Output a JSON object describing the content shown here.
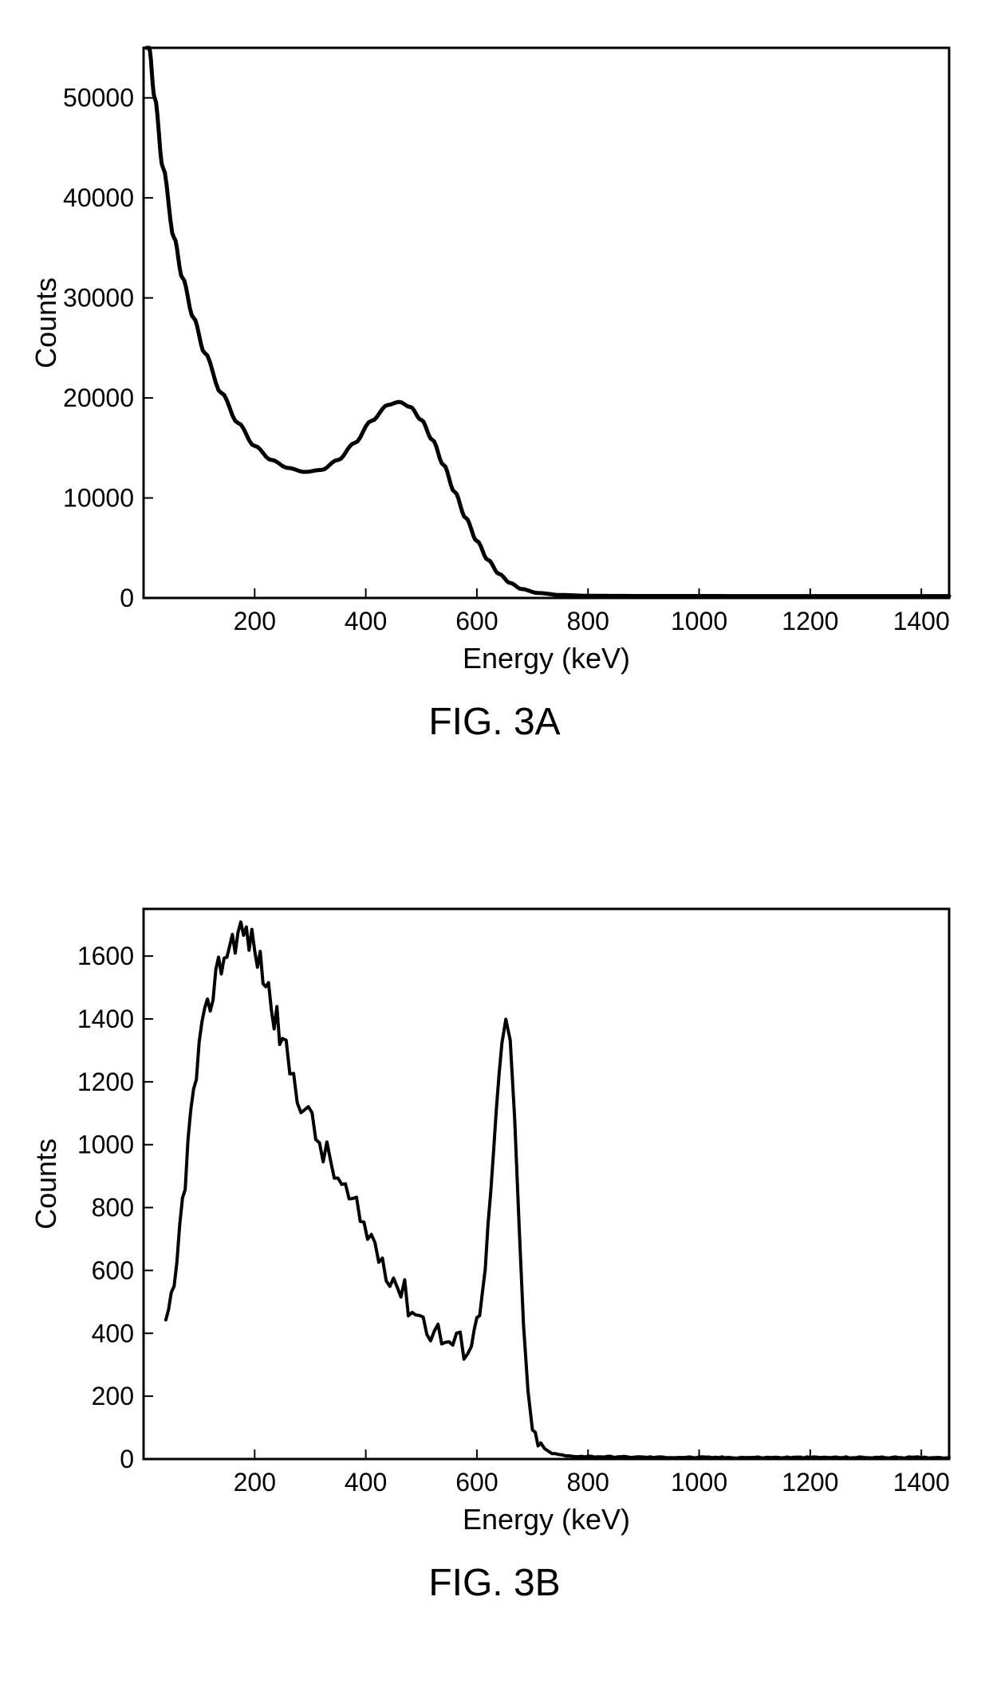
{
  "chartA": {
    "type": "line",
    "caption": "FIG. 3A",
    "xlabel": "Energy (keV)",
    "ylabel": "Counts",
    "xlim": [
      0,
      1450
    ],
    "ylim": [
      0,
      55000
    ],
    "xticks": [
      200,
      400,
      600,
      800,
      1000,
      1200,
      1400
    ],
    "yticks": [
      0,
      10000,
      20000,
      30000,
      40000,
      50000
    ],
    "line_color": "#000000",
    "line_width": 5,
    "background_color": "#ffffff",
    "grid": false,
    "axis_color": "#000000",
    "axis_width": 3,
    "tick_len": 12,
    "label_fontsize": 36,
    "tick_fontsize": 32,
    "caption_fontsize": 48,
    "series": [
      {
        "x": 5,
        "y": 58000
      },
      {
        "x": 10,
        "y": 55000
      },
      {
        "x": 20,
        "y": 50000
      },
      {
        "x": 35,
        "y": 43000
      },
      {
        "x": 55,
        "y": 36000
      },
      {
        "x": 70,
        "y": 32000
      },
      {
        "x": 90,
        "y": 28000
      },
      {
        "x": 110,
        "y": 24500
      },
      {
        "x": 140,
        "y": 20500
      },
      {
        "x": 170,
        "y": 17500
      },
      {
        "x": 200,
        "y": 15200
      },
      {
        "x": 230,
        "y": 13800
      },
      {
        "x": 260,
        "y": 13000
      },
      {
        "x": 290,
        "y": 12600
      },
      {
        "x": 320,
        "y": 12800
      },
      {
        "x": 350,
        "y": 13800
      },
      {
        "x": 380,
        "y": 15500
      },
      {
        "x": 410,
        "y": 17700
      },
      {
        "x": 440,
        "y": 19300
      },
      {
        "x": 460,
        "y": 19600
      },
      {
        "x": 480,
        "y": 19100
      },
      {
        "x": 500,
        "y": 17800
      },
      {
        "x": 520,
        "y": 15800
      },
      {
        "x": 540,
        "y": 13300
      },
      {
        "x": 560,
        "y": 10600
      },
      {
        "x": 580,
        "y": 8000
      },
      {
        "x": 600,
        "y": 5700
      },
      {
        "x": 620,
        "y": 3800
      },
      {
        "x": 640,
        "y": 2400
      },
      {
        "x": 660,
        "y": 1500
      },
      {
        "x": 680,
        "y": 900
      },
      {
        "x": 710,
        "y": 500
      },
      {
        "x": 750,
        "y": 300
      },
      {
        "x": 800,
        "y": 220
      },
      {
        "x": 900,
        "y": 200
      },
      {
        "x": 1000,
        "y": 200
      },
      {
        "x": 1100,
        "y": 190
      },
      {
        "x": 1200,
        "y": 190
      },
      {
        "x": 1300,
        "y": 190
      },
      {
        "x": 1400,
        "y": 190
      },
      {
        "x": 1450,
        "y": 190
      }
    ]
  },
  "chartB": {
    "type": "line",
    "caption": "FIG. 3B",
    "xlabel": "Energy (keV)",
    "ylabel": "Counts",
    "xlim": [
      0,
      1450
    ],
    "ylim": [
      0,
      1750
    ],
    "xticks": [
      200,
      400,
      600,
      800,
      1000,
      1200,
      1400
    ],
    "yticks": [
      0,
      200,
      400,
      600,
      800,
      1000,
      1200,
      1400,
      1600
    ],
    "line_color": "#000000",
    "line_width": 4,
    "background_color": "#ffffff",
    "grid": false,
    "axis_color": "#000000",
    "axis_width": 3,
    "tick_len": 12,
    "label_fontsize": 36,
    "tick_fontsize": 32,
    "caption_fontsize": 48,
    "noise_amplitude": 55,
    "series": [
      {
        "x": 40,
        "y": 400
      },
      {
        "x": 55,
        "y": 520
      },
      {
        "x": 70,
        "y": 820
      },
      {
        "x": 85,
        "y": 1080
      },
      {
        "x": 100,
        "y": 1300
      },
      {
        "x": 115,
        "y": 1420
      },
      {
        "x": 130,
        "y": 1540
      },
      {
        "x": 145,
        "y": 1600
      },
      {
        "x": 160,
        "y": 1650
      },
      {
        "x": 175,
        "y": 1680
      },
      {
        "x": 190,
        "y": 1660
      },
      {
        "x": 205,
        "y": 1600
      },
      {
        "x": 220,
        "y": 1520
      },
      {
        "x": 235,
        "y": 1420
      },
      {
        "x": 250,
        "y": 1320
      },
      {
        "x": 270,
        "y": 1210
      },
      {
        "x": 290,
        "y": 1120
      },
      {
        "x": 310,
        "y": 1030
      },
      {
        "x": 330,
        "y": 960
      },
      {
        "x": 350,
        "y": 890
      },
      {
        "x": 370,
        "y": 820
      },
      {
        "x": 390,
        "y": 760
      },
      {
        "x": 410,
        "y": 700
      },
      {
        "x": 430,
        "y": 640
      },
      {
        "x": 450,
        "y": 580
      },
      {
        "x": 470,
        "y": 520
      },
      {
        "x": 490,
        "y": 470
      },
      {
        "x": 510,
        "y": 430
      },
      {
        "x": 530,
        "y": 400
      },
      {
        "x": 550,
        "y": 370
      },
      {
        "x": 570,
        "y": 360
      },
      {
        "x": 590,
        "y": 380
      },
      {
        "x": 605,
        "y": 470
      },
      {
        "x": 615,
        "y": 620
      },
      {
        "x": 625,
        "y": 850
      },
      {
        "x": 635,
        "y": 1100
      },
      {
        "x": 645,
        "y": 1320
      },
      {
        "x": 652,
        "y": 1400
      },
      {
        "x": 660,
        "y": 1320
      },
      {
        "x": 668,
        "y": 1080
      },
      {
        "x": 676,
        "y": 750
      },
      {
        "x": 684,
        "y": 420
      },
      {
        "x": 692,
        "y": 200
      },
      {
        "x": 700,
        "y": 90
      },
      {
        "x": 715,
        "y": 40
      },
      {
        "x": 735,
        "y": 18
      },
      {
        "x": 760,
        "y": 10
      },
      {
        "x": 800,
        "y": 8
      },
      {
        "x": 900,
        "y": 6
      },
      {
        "x": 1000,
        "y": 5
      },
      {
        "x": 1100,
        "y": 5
      },
      {
        "x": 1200,
        "y": 5
      },
      {
        "x": 1300,
        "y": 5
      },
      {
        "x": 1400,
        "y": 5
      },
      {
        "x": 1450,
        "y": 5
      }
    ]
  }
}
